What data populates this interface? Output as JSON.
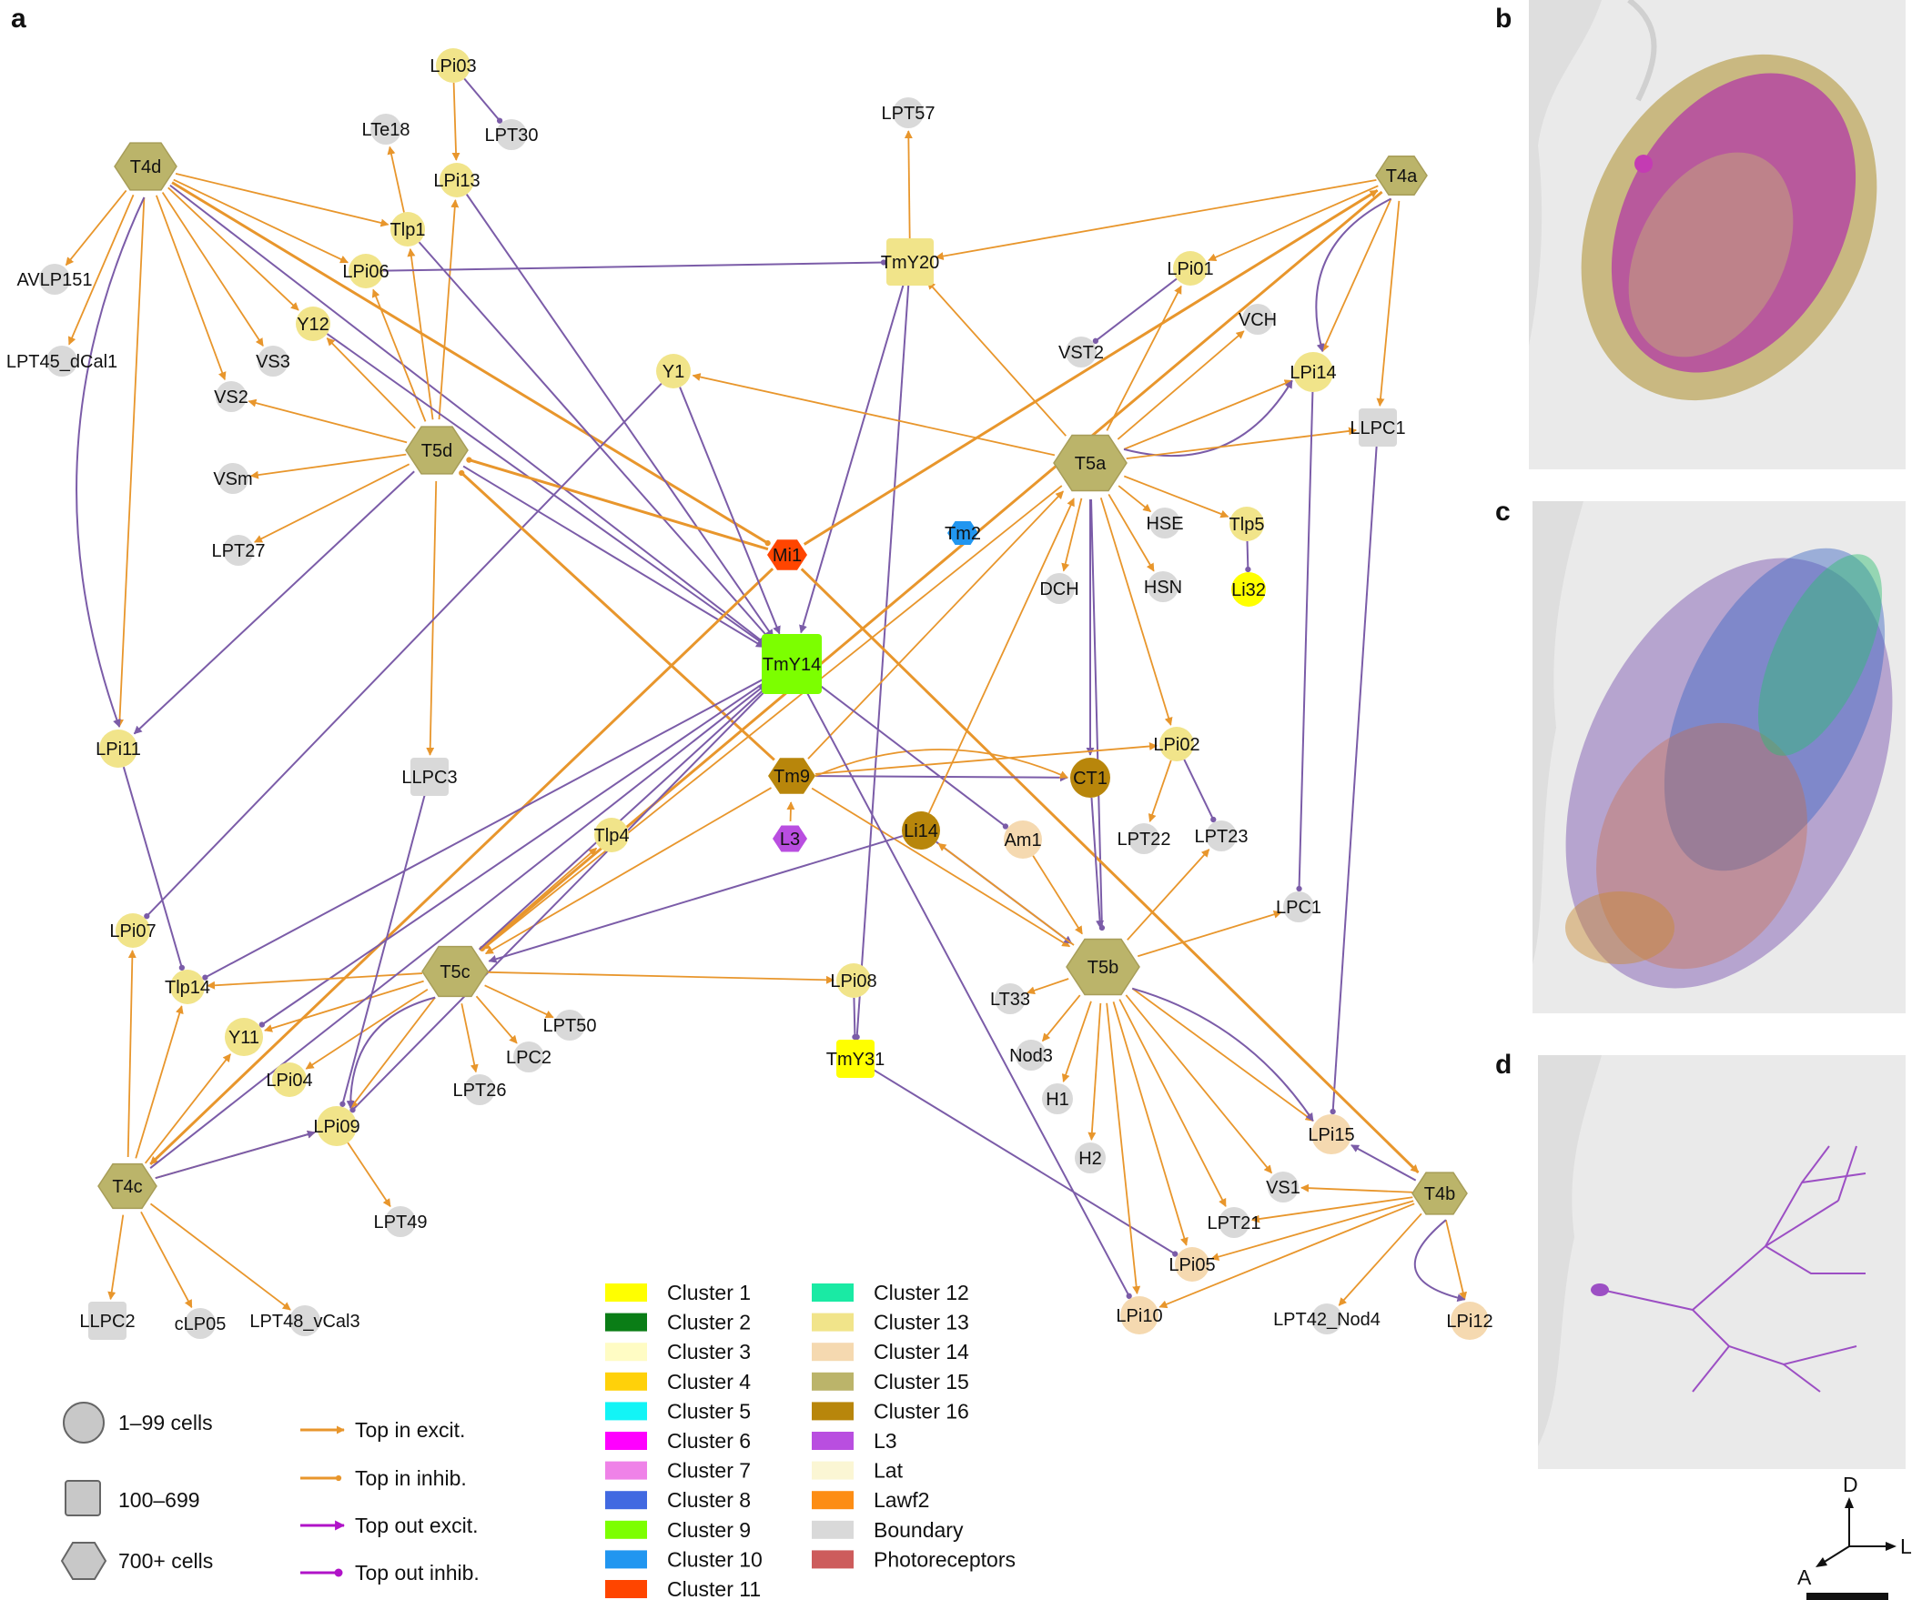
{
  "panels": {
    "a": "a",
    "b": "b",
    "c": "c",
    "d": "d"
  },
  "palette": {
    "orange": "#e8962c",
    "purple": "#7b5ca8",
    "magenta": "#b013c8",
    "gray": "#d9d9d9",
    "c1": "#ffff00",
    "c2": "#0a7d16",
    "c3": "#fffcc4",
    "c4": "#ffd10a",
    "c5": "#13f4f6",
    "c6": "#ff00ff",
    "c7": "#ef82e8",
    "c8": "#4169e1",
    "c9": "#7cff00",
    "c10": "#2196f0",
    "c11": "#ff4500",
    "c12": "#1aeaa4",
    "c13": "#f1e48a",
    "c14": "#f5d9b0",
    "c15": "#bbb46a",
    "c16": "#b8860b",
    "l3": "#b94ee0",
    "lat": "#fbf6d4",
    "lawf2": "#fd8d14",
    "boundary": "#d9d9d9",
    "photoreceptors": "#cd5c5c"
  },
  "nodes": {
    "T4d": "T4d",
    "T4a": "T4a",
    "T4c": "T4c",
    "T4b": "T4b",
    "T5d": "T5d",
    "T5a": "T5a",
    "T5c": "T5c",
    "T5b": "T5b",
    "Mi1": "Mi1",
    "Tm2": "Tm2",
    "L3": "L3",
    "Tm9": "Tm9",
    "TmY14": "TmY14",
    "TmY20": "TmY20",
    "TmY31": "TmY31",
    "LPi03": "LPi03",
    "LPT30": "LPT30",
    "LTe18": "LTe18",
    "LPi13": "LPi13",
    "Tlp1": "Tlp1",
    "LPi06": "LPi06",
    "AVLP151": "AVLP151",
    "LPT45_dCal1": "LPT45_dCal1",
    "Y12": "Y12",
    "VS3": "VS3",
    "VS2": "VS2",
    "VSm": "VSm",
    "LPT27": "LPT27",
    "LPT57": "LPT57",
    "Y1": "Y1",
    "LPi01": "LPi01",
    "VST2": "VST2",
    "VCH": "VCH",
    "LPi14": "LPi14",
    "LLPC1": "LLPC1",
    "HSE": "HSE",
    "Tlp5": "Tlp5",
    "Li32": "Li32",
    "DCH": "DCH",
    "HSN": "HSN",
    "LPi11": "LPi11",
    "LLPC3": "LLPC3",
    "CT1": "CT1",
    "LPi02": "LPi02",
    "LPT22": "LPT22",
    "LPT23": "LPT23",
    "Tlp4": "Tlp4",
    "Li14": "Li14",
    "Am1": "Am1",
    "LPC1": "LPC1",
    "LPi07": "LPi07",
    "Tlp14": "Tlp14",
    "Y11": "Y11",
    "LPi04": "LPi04",
    "LPT50": "LPT50",
    "LPC2": "LPC2",
    "LPT26": "LPT26",
    "LPi09": "LPi09",
    "LPT49": "LPT49",
    "LPi08": "LPi08",
    "LT33": "LT33",
    "Nod3": "Nod3",
    "H1": "H1",
    "H2": "H2",
    "LPi15": "LPi15",
    "VS1": "VS1",
    "LPT21": "LPT21",
    "LPi05": "LPi05",
    "LPi10": "LPi10",
    "LPT42_Nod4": "LPT42_Nod4",
    "LPi12": "LPi12",
    "LLPC2": "LLPC2",
    "cLP05": "cLP05",
    "LPT48_vCal3": "LPT48_vCal3"
  },
  "legend": {
    "shapes": [
      "1–99 cells",
      "100–699",
      "700+ cells"
    ],
    "edges": [
      "Top in excit.",
      "Top in inhib.",
      "Top out excit.",
      "Top out inhib."
    ],
    "clusters": [
      "Cluster 1",
      "Cluster 2",
      "Cluster 3",
      "Cluster 4",
      "Cluster 5",
      "Cluster 6",
      "Cluster 7",
      "Cluster 8",
      "Cluster 9",
      "Cluster 10",
      "Cluster 11",
      "Cluster 12",
      "Cluster 13",
      "Cluster 14",
      "Cluster 15",
      "Cluster 16",
      "L3",
      "Lat",
      "Lawf2",
      "Boundary",
      "Photoreceptors"
    ]
  },
  "axes": {
    "d": "D",
    "l": "L",
    "a": "A"
  }
}
